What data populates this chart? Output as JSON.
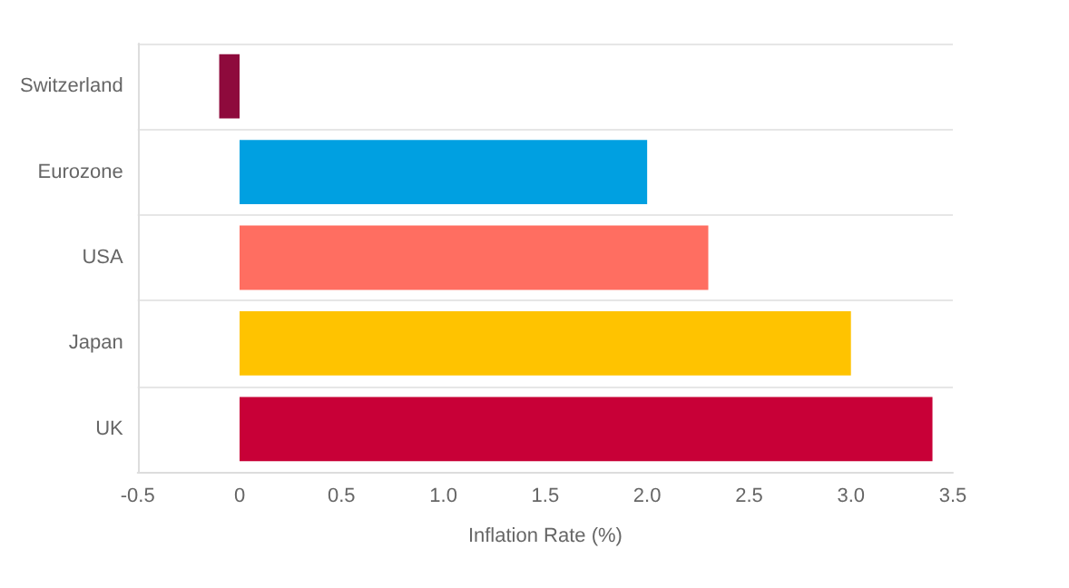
{
  "chart_data": {
    "type": "bar",
    "orientation": "horizontal",
    "xlabel": "Inflation Rate (%)",
    "categories": [
      "Switzerland",
      "Eurozone",
      "USA",
      "Japan",
      "UK"
    ],
    "values": [
      -0.1,
      2.0,
      2.3,
      3.0,
      3.4
    ],
    "colors": [
      "#8e0a3c",
      "#00a0e1",
      "#ff6e61",
      "#ffc300",
      "#c80037"
    ],
    "xlim": [
      -0.5,
      3.5
    ],
    "xticks": [
      -0.5,
      0,
      0.5,
      {
        "value": 1,
        "label": "1.0"
      },
      1.5,
      {
        "value": 2,
        "label": "2.0"
      },
      2.5,
      {
        "value": 3,
        "label": "3.0"
      },
      3.5
    ],
    "grid": "y"
  }
}
